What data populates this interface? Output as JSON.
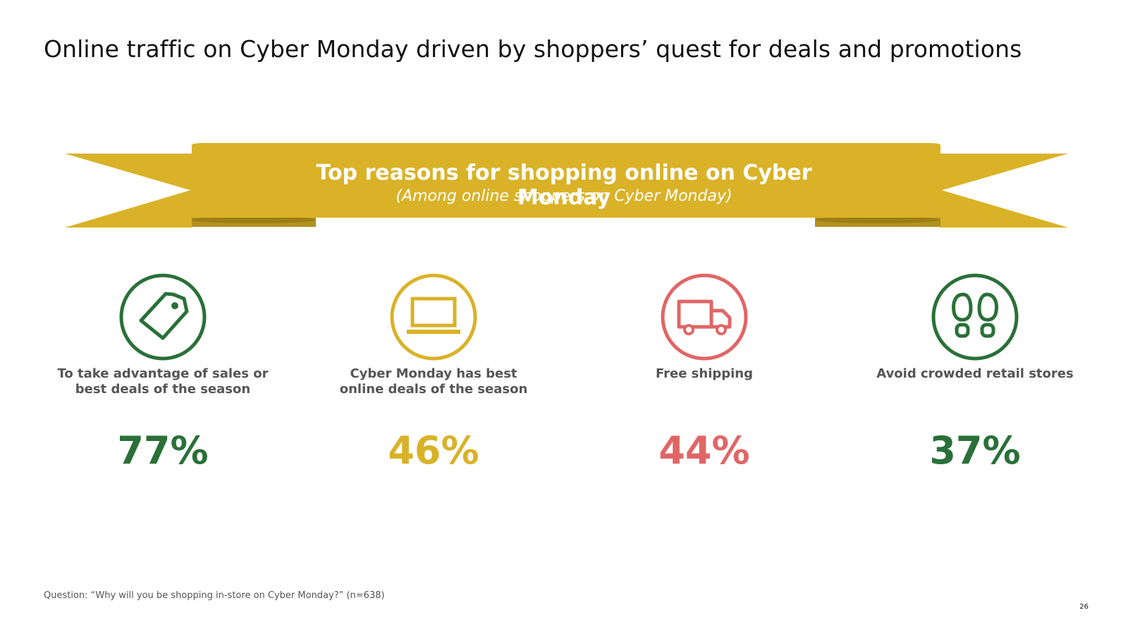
{
  "slide": {
    "title": "Online traffic on Cyber Monday driven by shoppers’ quest for deals and promotions",
    "banner_title": "Top reasons for shopping online on Cyber Monday",
    "banner_subtitle": "(Among online shoppers on Cyber Monday)",
    "footnote": "Question: “Why will you be shopping in-store on Cyber Monday?” (n=638)",
    "page_number": "26"
  },
  "colors": {
    "gold": "#D9B228",
    "gold_dark": "#B3911D",
    "green": "#2A7038",
    "red": "#E06666",
    "text_gray": "#555555"
  },
  "reasons": [
    {
      "icon": "price-tag-icon",
      "label": "To take advantage of sales or best deals of the season",
      "value": "77%",
      "color": "#2A7038"
    },
    {
      "icon": "laptop-icon",
      "label": "Cyber Monday has best online deals of the season",
      "value": "46%",
      "color": "#D9B228"
    },
    {
      "icon": "delivery-truck-icon",
      "label": "Free shipping",
      "value": "44%",
      "color": "#E06666"
    },
    {
      "icon": "footprints-icon",
      "label": "Avoid crowded retail stores",
      "value": "37%",
      "color": "#2A7038"
    }
  ]
}
